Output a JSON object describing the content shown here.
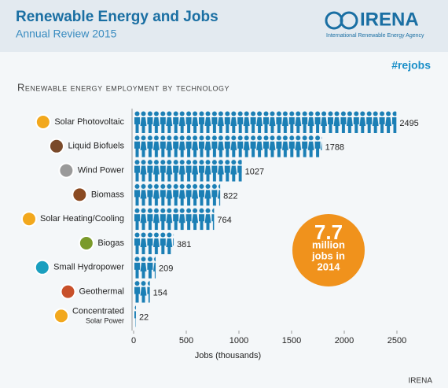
{
  "header": {
    "title": "Renewable Energy and Jobs",
    "subtitle": "Annual Review 2015",
    "logo": "IRENA",
    "logo_caption": "International Renewable Energy Agency"
  },
  "hashtag": "#rejobs",
  "chart_data": {
    "type": "bar",
    "title": "Renewable energy employment by technology",
    "categories": [
      "Solar Photovoltaic",
      "Liquid Biofuels",
      "Wind Power",
      "Biomass",
      "Solar Heating/Cooling",
      "Biogas",
      "Small Hydropower",
      "Geothermal",
      "Concentrated Solar Power"
    ],
    "values": [
      2495,
      1788,
      1027,
      822,
      764,
      381,
      209,
      154,
      22
    ],
    "color": "#1b7fb5",
    "xlim": [
      0,
      2500
    ],
    "xticks": [
      0,
      500,
      1000,
      1500,
      2000,
      2500
    ],
    "xlabel": "Jobs (thousands)"
  },
  "badge": {
    "lines": [
      "7.7",
      "million",
      "jobs in",
      "2014"
    ]
  },
  "source": "IRENA"
}
